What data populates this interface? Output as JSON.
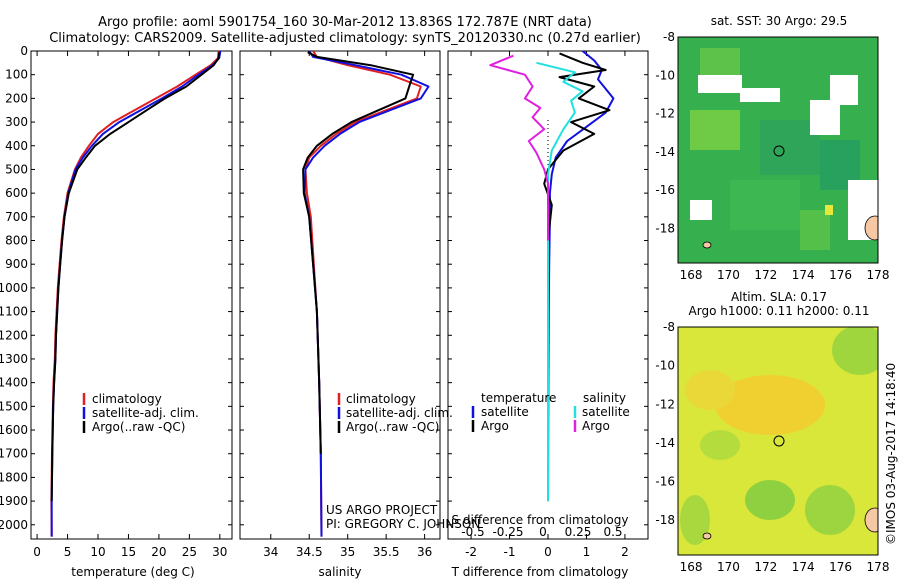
{
  "header": {
    "line1": "Argo profile: aoml 5901754_160 30-Mar-2012 13.836S 172.787E (NRT data)",
    "line2": "Climatology: CARS2009. Satellite-adjusted climatology: synTS_20120330.nc (0.27d earlier)"
  },
  "credits": {
    "project": "US ARGO PROJECT",
    "pi": "PI: GREGORY C. JOHNSON",
    "stamp": "©IMOS 03-Aug-2017 14:18:40"
  },
  "colors": {
    "climatology": "#e02020",
    "satellite": "#1010e0",
    "argo": "#000000",
    "sal_sat": "#20e0e0",
    "sal_argo": "#e020e0"
  },
  "chart_data": [
    {
      "id": "temp",
      "type": "line",
      "xlabel": "temperature (deg C)",
      "ylabel": "",
      "xlim": [
        -1,
        32
      ],
      "ylim": [
        2060,
        0
      ],
      "xticks": [
        0,
        5,
        10,
        15,
        20,
        25,
        30
      ],
      "yticks": [
        0,
        100,
        200,
        300,
        400,
        500,
        600,
        700,
        800,
        900,
        1000,
        1100,
        1200,
        1300,
        1400,
        1500,
        1600,
        1700,
        1800,
        1900,
        2000
      ],
      "legend": [
        "climatology",
        "satellite-adj. clim.",
        "Argo(..raw -QC)"
      ],
      "series": [
        {
          "name": "climatology",
          "color": "#e02020",
          "x": [
            29.8,
            29.7,
            28.5,
            26,
            23,
            19.5,
            16,
            12.5,
            10,
            8.5,
            7.2,
            6.2,
            5,
            4.4,
            4,
            3.7,
            3.4,
            3.2,
            3,
            2.9,
            2.7,
            2.6,
            2.45,
            2.35,
            2.4
          ],
          "y": [
            0,
            30,
            60,
            100,
            150,
            200,
            250,
            300,
            350,
            400,
            450,
            500,
            600,
            700,
            800,
            900,
            1000,
            1100,
            1200,
            1300,
            1400,
            1500,
            1700,
            1900,
            2050
          ]
        },
        {
          "name": "satellite-adj. clim.",
          "color": "#1010e0",
          "x": [
            30.1,
            29.9,
            28.8,
            26.5,
            23.8,
            20.5,
            17,
            13.5,
            10.8,
            9,
            7.5,
            6.3,
            5.1,
            4.5,
            4.1,
            3.8,
            3.5,
            3.3,
            3.1,
            3,
            2.8,
            2.65,
            2.5,
            2.4,
            2.4
          ],
          "y": [
            0,
            30,
            60,
            100,
            150,
            200,
            250,
            300,
            350,
            400,
            450,
            500,
            600,
            700,
            800,
            900,
            1000,
            1100,
            1200,
            1300,
            1400,
            1500,
            1700,
            1900,
            2050
          ]
        },
        {
          "name": "Argo(..raw -QC)",
          "color": "#000000",
          "x": [
            29.9,
            29.8,
            29,
            27,
            24.5,
            21,
            18,
            15,
            12,
            9.5,
            8,
            6.6,
            5.2,
            4.5,
            4.1,
            3.8,
            3.5,
            3.3,
            3.1,
            3,
            2.8,
            2.65,
            2.5,
            2.4
          ],
          "y": [
            5,
            30,
            60,
            100,
            150,
            200,
            250,
            300,
            350,
            400,
            450,
            500,
            600,
            700,
            800,
            900,
            1000,
            1100,
            1200,
            1300,
            1400,
            1500,
            1700,
            1900
          ]
        }
      ]
    },
    {
      "id": "sal",
      "type": "line",
      "xlabel": "salinity",
      "ylabel": "",
      "xlim": [
        33.6,
        36.2
      ],
      "ylim": [
        2060,
        0
      ],
      "xticks": [
        34,
        34.5,
        35,
        35.5,
        36
      ],
      "legend": [
        "climatology",
        "satellite-adj. clim.",
        "Argo(..raw -QC)"
      ],
      "series": [
        {
          "name": "climatology",
          "color": "#e02020",
          "x": [
            34.55,
            34.6,
            35,
            35.55,
            35.95,
            35.9,
            35.5,
            35.1,
            34.85,
            34.65,
            34.5,
            34.45,
            34.47,
            34.52,
            34.56,
            34.6,
            34.63,
            34.65,
            34.66
          ],
          "y": [
            0,
            25,
            60,
            100,
            150,
            200,
            250,
            300,
            350,
            400,
            450,
            500,
            600,
            700,
            900,
            1100,
            1400,
            1700,
            2050
          ]
        },
        {
          "name": "satellite-adj. clim.",
          "color": "#1010e0",
          "x": [
            34.5,
            34.55,
            35.1,
            35.7,
            36.05,
            35.95,
            35.55,
            35.15,
            34.9,
            34.7,
            34.55,
            34.45,
            34.44,
            34.5,
            34.55,
            34.6,
            34.63,
            34.65,
            34.66
          ],
          "y": [
            0,
            25,
            60,
            100,
            150,
            200,
            250,
            300,
            350,
            400,
            450,
            500,
            600,
            700,
            900,
            1100,
            1400,
            1700,
            2050
          ]
        },
        {
          "name": "Argo(..raw -QC)",
          "color": "#000000",
          "x": [
            34.48,
            34.6,
            35.3,
            35.85,
            35.8,
            35.75,
            35.4,
            35.05,
            34.8,
            34.6,
            34.48,
            34.42,
            34.43,
            34.5,
            34.55,
            34.6,
            34.63,
            34.65
          ],
          "y": [
            5,
            25,
            60,
            100,
            150,
            200,
            250,
            300,
            350,
            400,
            450,
            500,
            600,
            700,
            900,
            1100,
            1400,
            1700
          ]
        }
      ]
    },
    {
      "id": "diff",
      "type": "line",
      "xlabel": "T difference from climatology",
      "xlabel2": "S difference from climatology",
      "xlim": [
        -2.6,
        2.6
      ],
      "ylim": [
        2060,
        0
      ],
      "xticks": [
        -2,
        -1,
        0,
        1,
        2
      ],
      "xticks_top": [
        -0.5,
        -0.25,
        0,
        0.25,
        0.5
      ],
      "legend_t_title": "temperature",
      "legend_s_title": "salinity",
      "legend": [
        "satellite",
        "Argo",
        "satellite",
        "Argo"
      ],
      "series": [
        {
          "name": "satellite",
          "group": "temperature",
          "color": "#1010e0",
          "x": [
            0.9,
            1.2,
            1.4,
            1.3,
            1.7,
            1.5,
            1,
            0.5,
            0.2,
            0.1,
            0.05,
            0.05,
            0.03,
            0.02,
            0.01,
            0
          ],
          "y": [
            0,
            40,
            80,
            120,
            200,
            260,
            320,
            380,
            450,
            520,
            600,
            700,
            900,
            1100,
            1400,
            1900
          ]
        },
        {
          "name": "Argo",
          "group": "temperature",
          "color": "#000000",
          "x": [
            0.3,
            0.9,
            1.5,
            0.3,
            1.2,
            0.8,
            1.6,
            0.6,
            1.2,
            0.4,
            0,
            -0.1,
            0.1,
            0,
            0,
            0
          ],
          "y": [
            10,
            50,
            80,
            110,
            150,
            200,
            250,
            300,
            350,
            420,
            500,
            560,
            650,
            800,
            1000,
            1300
          ]
        },
        {
          "name": "satellite",
          "group": "salinity",
          "color": "#20e0e0",
          "x": [
            -0.3,
            0.7,
            0.4,
            0.9,
            0.6,
            0.7,
            0.4,
            0.1,
            0,
            0,
            0,
            0
          ],
          "y": [
            50,
            90,
            130,
            170,
            210,
            260,
            330,
            420,
            520,
            650,
            900,
            1900
          ]
        },
        {
          "name": "Argo",
          "group": "salinity",
          "color": "#e020e0",
          "x": [
            -0.9,
            -1.5,
            -0.6,
            -0.4,
            -0.6,
            -0.2,
            -0.4,
            -0.1,
            -0.5,
            -0.3,
            -0.1,
            0,
            0,
            0
          ],
          "y": [
            20,
            60,
            100,
            150,
            200,
            240,
            280,
            330,
            380,
            430,
            500,
            560,
            650,
            800
          ]
        }
      ]
    },
    {
      "id": "sst_map",
      "type": "heatmap",
      "title": "sat. SST: 30 Argo: 29.5",
      "xlim": [
        167.3,
        178
      ],
      "ylim": [
        -19.8,
        -8
      ],
      "xticks": [
        168,
        170,
        172,
        174,
        176,
        178
      ],
      "yticks": [
        -8,
        -10,
        -12,
        -14,
        -16,
        -18
      ],
      "marker": {
        "lon": 172.787,
        "lat": -13.836
      }
    },
    {
      "id": "sla_map",
      "type": "heatmap",
      "title": "Altim. SLA: 0.17",
      "subtitle": "Argo h1000: 0.11 h2000: 0.11",
      "xlim": [
        167.3,
        178
      ],
      "ylim": [
        -19.8,
        -8
      ],
      "xticks": [
        168,
        170,
        172,
        174,
        176,
        178
      ],
      "yticks": [
        -8,
        -10,
        -12,
        -14,
        -16,
        -18
      ],
      "marker": {
        "lon": 172.787,
        "lat": -13.836
      }
    }
  ]
}
